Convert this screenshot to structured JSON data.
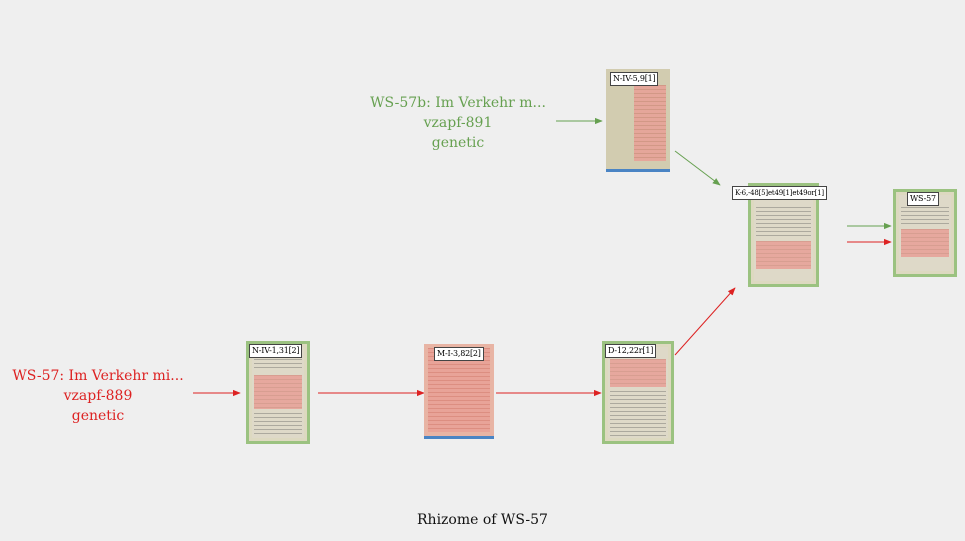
{
  "caption": "Rhizome of WS-57",
  "colors": {
    "red": "#dd2222",
    "green": "#66a050",
    "background": "#efefef"
  },
  "series": [
    {
      "title": "WS-57: Im Verkehr mi...",
      "id": "vzapf-889",
      "kind": "genetic",
      "color": "#dd2222"
    },
    {
      "title": "WS-57b: Im Verkehr m...",
      "id": "vzapf-891",
      "kind": "genetic",
      "color": "#66a050"
    }
  ],
  "nodes": {
    "niv131": {
      "label": "N-IV-1,31[2]"
    },
    "mi382": {
      "label": "M-I-3,82[2]"
    },
    "d1222": {
      "label": "D-12,22r[1]"
    },
    "niv59": {
      "label": "N-IV-5,9[1]"
    },
    "k648": {
      "label": "K-6,-48[5]et49[1]et49or[1]"
    },
    "ws57": {
      "label": "WS-57"
    }
  }
}
